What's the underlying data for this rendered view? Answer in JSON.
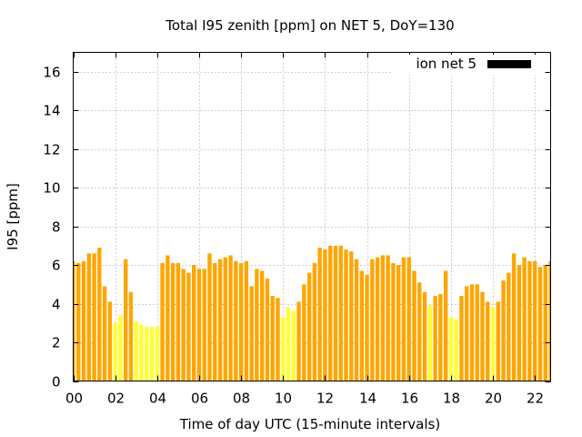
{
  "chart_data": {
    "type": "bar",
    "title": "Total I95 zenith [ppm] on NET 5, DoY=130",
    "xlabel": "Time of day UTC (15-minute intervals)",
    "ylabel": "I95 [ppm]",
    "xlim": [
      0,
      22.75
    ],
    "ylim": [
      0,
      17
    ],
    "x_ticks": [
      "00",
      "02",
      "04",
      "06",
      "08",
      "10",
      "12",
      "14",
      "16",
      "18",
      "20",
      "22"
    ],
    "y_ticks": [
      "0",
      "2",
      "4",
      "6",
      "8",
      "10",
      "12",
      "14",
      "16"
    ],
    "grid": true,
    "legend_position": "top-right",
    "series": [
      {
        "name": "ion net 5",
        "legend_color": "#000000",
        "interval_hours": 0.25,
        "values": [
          6.2,
          6.1,
          6.2,
          6.6,
          6.6,
          6.9,
          4.9,
          4.1,
          3.0,
          3.4,
          6.3,
          4.6,
          3.1,
          2.9,
          2.8,
          2.8,
          2.8,
          6.1,
          6.5,
          6.1,
          6.1,
          5.8,
          5.6,
          6.0,
          5.8,
          5.8,
          6.6,
          6.1,
          6.3,
          6.4,
          6.5,
          6.2,
          6.1,
          6.2,
          4.9,
          5.8,
          5.7,
          5.3,
          4.4,
          4.3,
          3.3,
          3.8,
          3.6,
          4.1,
          5.0,
          5.6,
          6.1,
          6.9,
          6.8,
          7.0,
          7.0,
          7.0,
          6.8,
          6.7,
          6.3,
          5.7,
          5.5,
          6.3,
          6.4,
          6.5,
          6.5,
          6.1,
          6.0,
          6.4,
          6.4,
          5.7,
          5.1,
          4.6,
          3.9,
          4.4,
          4.5,
          5.7,
          3.3,
          3.2,
          4.4,
          4.9,
          5.0,
          5.0,
          4.6,
          4.1,
          3.8,
          4.1,
          5.2,
          5.6,
          6.6,
          6.0,
          6.4,
          6.2,
          6.2,
          5.9,
          6.0,
          6.2
        ],
        "colors": {
          "high": "#ffa500",
          "low": "#ffff33"
        },
        "categories": [
          "high",
          "high",
          "high",
          "high",
          "high",
          "high",
          "high",
          "high",
          "low",
          "low",
          "high",
          "high",
          "low",
          "low",
          "low",
          "low",
          "low",
          "high",
          "high",
          "high",
          "high",
          "high",
          "high",
          "high",
          "high",
          "high",
          "high",
          "high",
          "high",
          "high",
          "high",
          "high",
          "high",
          "high",
          "high",
          "high",
          "high",
          "high",
          "high",
          "high",
          "low",
          "low",
          "low",
          "high",
          "high",
          "high",
          "high",
          "high",
          "high",
          "high",
          "high",
          "high",
          "high",
          "high",
          "high",
          "high",
          "high",
          "high",
          "high",
          "high",
          "high",
          "high",
          "high",
          "high",
          "high",
          "high",
          "high",
          "high",
          "low",
          "high",
          "high",
          "high",
          "low",
          "low",
          "high",
          "high",
          "high",
          "high",
          "high",
          "high",
          "low",
          "high",
          "high",
          "high",
          "high",
          "high",
          "high",
          "high",
          "high",
          "high",
          "high",
          "high"
        ]
      }
    ]
  }
}
